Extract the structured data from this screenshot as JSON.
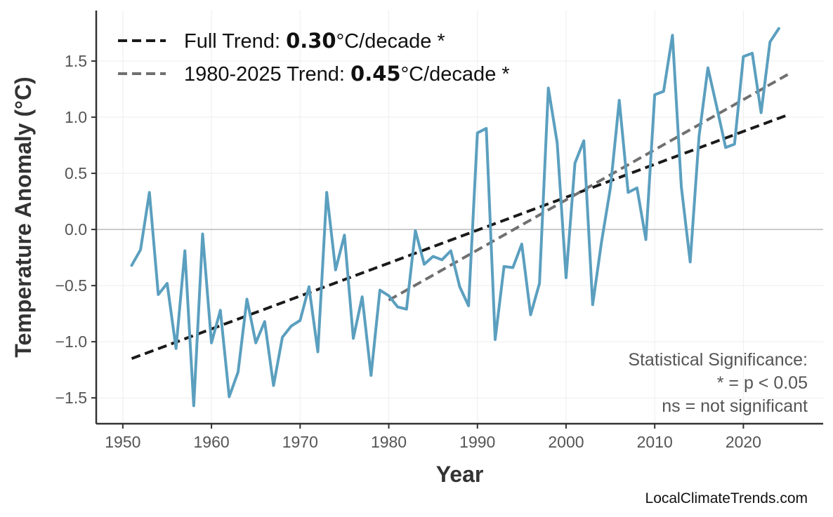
{
  "chart_data": {
    "type": "line",
    "xlabel": "Year",
    "ylabel": "Temperature Anomaly (°C)",
    "xlim": [
      1947,
      2029
    ],
    "ylim": [
      -1.73,
      1.95
    ],
    "x_ticks": [
      1950,
      1960,
      1970,
      1980,
      1990,
      2000,
      2010,
      2020
    ],
    "y_ticks": [
      -1.5,
      -1.0,
      -0.5,
      0.0,
      0.5,
      1.0,
      1.5
    ],
    "y_tick_labels": [
      "−1.5",
      "−1.0",
      "−0.5",
      "0.0",
      "0.5",
      "1.0",
      "1.5"
    ],
    "grid": true,
    "zero_line": true,
    "series": [
      {
        "color": "#5b9fbf",
        "x": [
          1951,
          1952,
          1953,
          1954,
          1955,
          1956,
          1957,
          1958,
          1959,
          1960,
          1961,
          1962,
          1963,
          1964,
          1965,
          1966,
          1967,
          1968,
          1969,
          1970,
          1971,
          1972,
          1973,
          1974,
          1975,
          1976,
          1977,
          1978,
          1979,
          1980,
          1981,
          1982,
          1983,
          1984,
          1985,
          1986,
          1987,
          1988,
          1989,
          1990,
          1991,
          1992,
          1993,
          1994,
          1995,
          1996,
          1997,
          1998,
          1999,
          2000,
          2001,
          2002,
          2003,
          2004,
          2005,
          2006,
          2007,
          2008,
          2009,
          2010,
          2011,
          2012,
          2013,
          2014,
          2015,
          2016,
          2017,
          2018,
          2019,
          2020,
          2021,
          2022,
          2023,
          2024
        ],
        "y": [
          -0.32,
          -0.18,
          0.33,
          -0.58,
          -0.48,
          -1.06,
          -0.19,
          -1.57,
          -0.04,
          -1.01,
          -0.72,
          -1.49,
          -1.27,
          -0.62,
          -1.01,
          -0.82,
          -1.39,
          -0.96,
          -0.86,
          -0.81,
          -0.51,
          -1.09,
          0.33,
          -0.36,
          -0.05,
          -0.97,
          -0.6,
          -1.3,
          -0.54,
          -0.59,
          -0.69,
          -0.71,
          -0.01,
          -0.31,
          -0.24,
          -0.27,
          -0.19,
          -0.51,
          -0.68,
          0.86,
          0.9,
          -0.98,
          -0.33,
          -0.34,
          -0.13,
          -0.76,
          -0.48,
          1.26,
          0.77,
          -0.43,
          0.59,
          0.79,
          -0.67,
          -0.11,
          0.37,
          1.15,
          0.33,
          0.37,
          -0.09,
          1.2,
          1.23,
          1.73,
          0.38,
          -0.29,
          0.83,
          1.44,
          1.09,
          0.73,
          0.76,
          1.54,
          1.57,
          1.04,
          1.67,
          1.79
        ]
      }
    ],
    "trends": [
      {
        "name": "Full Trend",
        "label_prefix": "Full Trend: ",
        "value_label": "0.30",
        "suffix": "°C/decade *",
        "color": "#1a1a1a",
        "x": [
          1951,
          2025
        ],
        "y": [
          -1.15,
          1.02
        ]
      },
      {
        "name": "1980-2025 Trend",
        "label_prefix": "1980-2025 Trend: ",
        "value_label": "0.45",
        "suffix": "°C/decade *",
        "color": "#707070",
        "x": [
          1980,
          2025
        ],
        "y": [
          -0.63,
          1.38
        ]
      }
    ],
    "legend_position": "top-left",
    "annotation": {
      "lines": [
        "Statistical Significance:",
        "* = p < 0.05",
        "ns = not significant"
      ],
      "position": "bottom-right"
    }
  },
  "credit": "LocalClimateTrends.com"
}
